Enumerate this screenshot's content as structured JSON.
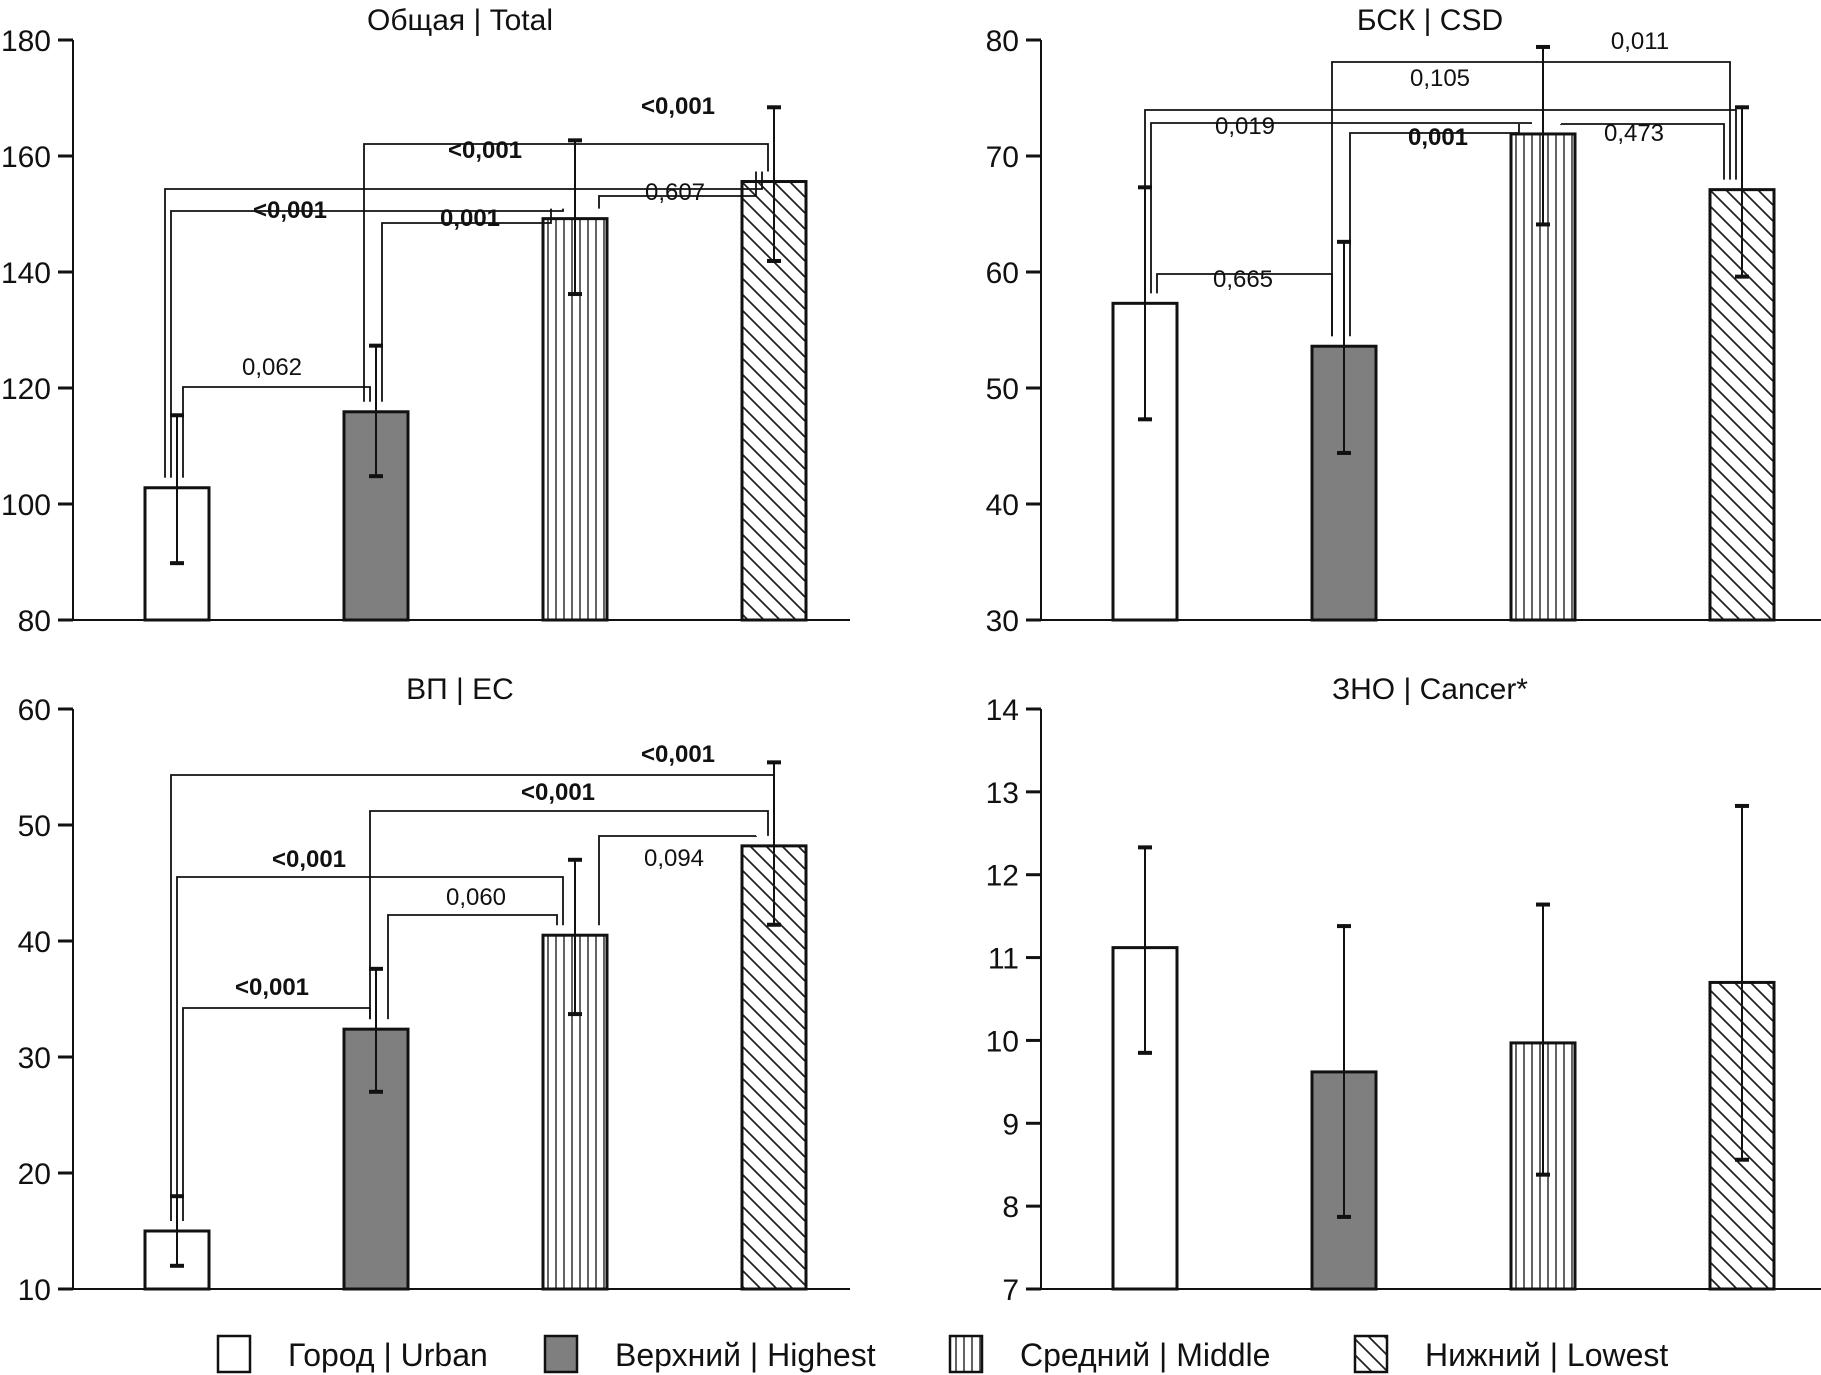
{
  "chart_data": {
    "type": "bar",
    "categories": [
      "Город | Urban",
      "Верхний | Highest",
      "Средний | Middle",
      "Нижний | Lowest"
    ],
    "legend": {
      "placement": "bottom",
      "items": [
        {
          "label": "Город | Urban",
          "pattern": "white"
        },
        {
          "label": "Верхний | Highest",
          "pattern": "gray"
        },
        {
          "label": "Средний | Middle",
          "pattern": "vertical-hatch"
        },
        {
          "label": "Нижний | Lowest",
          "pattern": "diagonal-hatch"
        }
      ]
    },
    "colors": {
      "gray_fill": "#7f7f7f",
      "line": "#111111",
      "background": "#ffffff"
    },
    "panels": [
      {
        "title": "Общая | Total",
        "ylim": [
          80,
          180
        ],
        "yticks": [
          80,
          100,
          120,
          140,
          160,
          180
        ],
        "values": [
          102.8,
          115.9,
          149.2,
          155.6
        ],
        "error_low": [
          89.8,
          104.8,
          136.2,
          141.9
        ],
        "error_high": [
          115.3,
          127.3,
          162.7,
          168.4
        ],
        "comparisons": [
          {
            "pair": [
              0,
              1
            ],
            "p": "0,062",
            "bold": false
          },
          {
            "pair": [
              0,
              2
            ],
            "p": "<0,001",
            "bold": true
          },
          {
            "pair": [
              0,
              3
            ],
            "p": "<0,001",
            "bold": true
          },
          {
            "pair": [
              1,
              2
            ],
            "p": "0,001",
            "bold": true
          },
          {
            "pair": [
              1,
              3
            ],
            "p": "<0,001",
            "bold": true
          },
          {
            "pair": [
              2,
              3
            ],
            "p": "0,607",
            "bold": false
          }
        ]
      },
      {
        "title": "БСК | CSD",
        "ylim": [
          30,
          80
        ],
        "yticks": [
          30,
          40,
          50,
          60,
          70,
          80
        ],
        "values": [
          57.3,
          53.6,
          71.9,
          67.1
        ],
        "error_low": [
          47.3,
          44.4,
          64.1,
          59.6
        ],
        "error_high": [
          67.3,
          62.6,
          79.4,
          74.2
        ],
        "comparisons": [
          {
            "pair": [
              0,
              1
            ],
            "p": "0,665",
            "bold": false
          },
          {
            "pair": [
              0,
              2
            ],
            "p": "0,019",
            "bold": false
          },
          {
            "pair": [
              0,
              3
            ],
            "p": "0,105",
            "bold": false
          },
          {
            "pair": [
              1,
              2
            ],
            "p": "0,001",
            "bold": true
          },
          {
            "pair": [
              1,
              3
            ],
            "p": "0,011",
            "bold": false
          },
          {
            "pair": [
              2,
              3
            ],
            "p": "0,473",
            "bold": false
          }
        ]
      },
      {
        "title": "ВП | EC",
        "ylim": [
          10,
          60
        ],
        "yticks": [
          10,
          20,
          30,
          40,
          50,
          60
        ],
        "values": [
          15.0,
          32.4,
          40.5,
          48.2
        ],
        "error_low": [
          12.0,
          27.0,
          33.7,
          41.4
        ],
        "error_high": [
          18.0,
          37.6,
          47.0,
          55.4
        ],
        "comparisons": [
          {
            "pair": [
              0,
              1
            ],
            "p": "<0,001",
            "bold": true
          },
          {
            "pair": [
              0,
              2
            ],
            "p": "<0,001",
            "bold": true
          },
          {
            "pair": [
              0,
              3
            ],
            "p": "<0,001",
            "bold": true
          },
          {
            "pair": [
              1,
              2
            ],
            "p": "0,060",
            "bold": false
          },
          {
            "pair": [
              1,
              3
            ],
            "p": "<0,001",
            "bold": true
          },
          {
            "pair": [
              2,
              3
            ],
            "p": "0,094",
            "bold": false
          }
        ]
      },
      {
        "title": "ЗНО | Cancer*",
        "ylim": [
          7,
          14
        ],
        "yticks": [
          7,
          8,
          9,
          10,
          11,
          12,
          13,
          14
        ],
        "values": [
          11.12,
          9.62,
          9.97,
          10.7
        ],
        "error_low": [
          9.85,
          7.87,
          8.38,
          8.56
        ],
        "error_high": [
          12.33,
          11.38,
          11.64,
          12.83
        ],
        "comparisons": []
      }
    ]
  }
}
